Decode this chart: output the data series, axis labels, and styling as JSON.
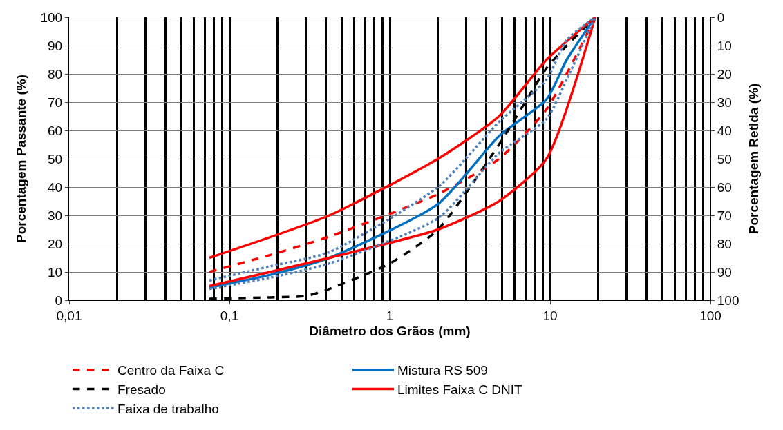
{
  "chart_data": {
    "type": "line",
    "xlabel": "Diâmetro dos Grãos (mm)",
    "ylabel": "Porcentagem Passante (%)",
    "y2label": "Porcentagem Retida (%)",
    "log": "x",
    "grid": true,
    "legend": "bottom",
    "marker": "none",
    "xlim": [
      0.01,
      100
    ],
    "xticks": [
      {
        "value": 0.01,
        "label": "0,01"
      },
      {
        "value": 0.1,
        "label": "0,1"
      },
      1,
      10,
      100
    ],
    "ylim": [
      0,
      100
    ],
    "yticks": [
      0,
      10,
      20,
      30,
      40,
      50,
      60,
      70,
      80,
      90,
      100
    ],
    "y2lim": [
      100,
      0
    ],
    "y2ticks": [
      0,
      10,
      20,
      30,
      40,
      50,
      60,
      70,
      80,
      90,
      100
    ],
    "series": [
      {
        "name": "Centro da Faixa C",
        "color": "#ff0000",
        "line_style": "dashed",
        "x": [
          0.075,
          0.18,
          0.42,
          2,
          4.8,
          9.5,
          19.1
        ],
        "values": [
          10,
          16,
          22.5,
          37.5,
          50,
          67.5,
          100
        ]
      },
      {
        "name": "Mistura RS 509",
        "color": "#0070c0",
        "line_style": "solid",
        "x": [
          0.075,
          0.18,
          0.42,
          2,
          4.8,
          9.5,
          12.7,
          19.1
        ],
        "values": [
          4.5,
          9,
          15,
          34,
          58,
          71,
          85,
          100
        ]
      },
      {
        "name": "Fresado",
        "color": "#000000",
        "line_style": "dashed",
        "x": [
          0.075,
          0.18,
          0.3,
          0.42,
          1,
          2,
          4.8,
          9.5,
          12.7,
          19.1
        ],
        "values": [
          0.5,
          1,
          1.5,
          4,
          13,
          25,
          55,
          82,
          90,
          100
        ]
      },
      {
        "name": "Limites Faixa C DNIT",
        "color": "#ff0000",
        "line_style": "solid",
        "x": [
          0.075,
          0.42,
          2,
          4.8,
          9.5,
          19.1
        ],
        "values": [
          15,
          30,
          50,
          65,
          85,
          100
        ]
      },
      {
        "name": "Faixa de trabalho",
        "color": "#4f81bd",
        "line_style": "dotted",
        "x": [
          0.075,
          0.18,
          0.42,
          2,
          4.8,
          9.5,
          12.7,
          19.1
        ],
        "values": [
          7,
          12,
          17,
          40,
          63,
          78,
          92,
          100
        ]
      },
      {
        "color": "#ff0000",
        "line_style": "solid",
        "x": [
          0.075,
          0.18,
          0.42,
          2,
          4.8,
          9.5,
          19.1
        ],
        "values": [
          5,
          10,
          15,
          25,
          35,
          50,
          100
        ]
      },
      {
        "color": "#4f81bd",
        "line_style": "dotted",
        "x": [
          0.075,
          0.18,
          0.42,
          2,
          4.8,
          9.5,
          12.7,
          19.1
        ],
        "values": [
          4,
          8,
          13,
          29,
          52,
          64,
          78,
          100
        ]
      }
    ]
  }
}
